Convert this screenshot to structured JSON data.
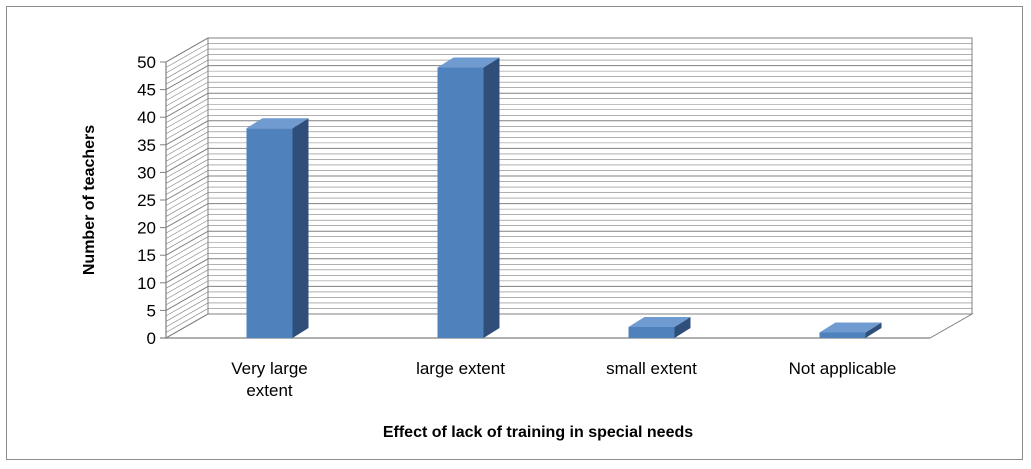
{
  "chart_data": {
    "type": "bar",
    "categories": [
      "Very large extent",
      "large extent",
      "small extent",
      "Not applicable"
    ],
    "category_lines": [
      [
        "Very large",
        "extent"
      ],
      [
        "large extent"
      ],
      [
        "small extent"
      ],
      [
        "Not applicable"
      ]
    ],
    "values": [
      38,
      49,
      2,
      1
    ],
    "xlabel": "Effect of lack of training in special needs",
    "ylabel": "Number of teachers",
    "ylim": [
      0,
      50
    ],
    "yticks": [
      "0",
      "5",
      "10",
      "15",
      "20",
      "25",
      "30",
      "35",
      "40",
      "45",
      "50"
    ],
    "grid": true,
    "style": "3d-column"
  },
  "colors": {
    "bar_front": "#4f81bd",
    "bar_side": "#2f4f7a",
    "bar_top": "#6f9bd1",
    "grid_line": "#808080",
    "frame": "#8c8c8c"
  }
}
